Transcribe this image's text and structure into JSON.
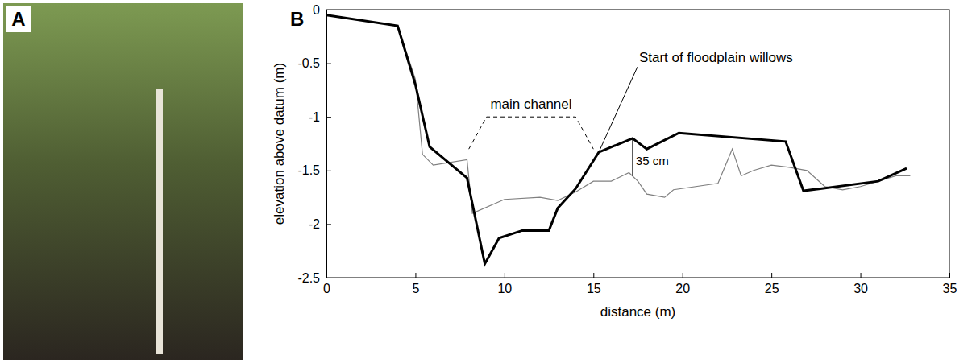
{
  "panel_a": {
    "label": "A"
  },
  "chart_data": {
    "type": "line",
    "panel_label": "B",
    "x_label": "distance (m)",
    "y_label": "elevation above datum (m)",
    "xlim": [
      0,
      35
    ],
    "xticks": [
      0,
      5,
      10,
      15,
      20,
      25,
      30,
      35
    ],
    "ylim": [
      -2.5,
      0
    ],
    "yticks": [
      -2.5,
      -2,
      -1.5,
      -1,
      -0.5,
      0
    ],
    "series": [
      {
        "color": "#000000",
        "x": [
          0,
          4,
          5,
          5.8,
          7.9,
          8.9,
          9.7,
          11,
          12.5,
          13,
          14,
          15.3,
          17.2,
          18,
          19.8,
          25.8,
          26.8,
          31,
          32.6
        ],
        "values": [
          -0.05,
          -0.15,
          -0.7,
          -1.28,
          -1.57,
          -2.37,
          -2.13,
          -2.06,
          -2.06,
          -1.85,
          -1.67,
          -1.33,
          -1.2,
          -1.3,
          -1.15,
          -1.23,
          -1.69,
          -1.6,
          -1.48
        ]
      },
      {
        "color": "#808080",
        "x": [
          0,
          4,
          5,
          5.4,
          6,
          7.9,
          8.2,
          10,
          12,
          13,
          14,
          15,
          16,
          17,
          17.5,
          18,
          19,
          19.5,
          22,
          22.8,
          23.3,
          24,
          25,
          26,
          27,
          28,
          29,
          30,
          31,
          32,
          32.8
        ],
        "values": [
          -0.05,
          -0.15,
          -0.65,
          -1.35,
          -1.45,
          -1.4,
          -1.9,
          -1.77,
          -1.75,
          -1.78,
          -1.7,
          -1.6,
          -1.6,
          -1.52,
          -1.6,
          -1.72,
          -1.75,
          -1.68,
          -1.62,
          -1.3,
          -1.55,
          -1.5,
          -1.45,
          -1.47,
          -1.5,
          -1.65,
          -1.68,
          -1.65,
          -1.6,
          -1.55,
          -1.55
        ]
      }
    ],
    "annotations": [
      {
        "text": "main channel",
        "x": [
          8,
          15
        ],
        "y": -1
      },
      {
        "text": "Start of floodplain willows",
        "x": 15.3,
        "y": -1.33
      },
      {
        "text": "35 cm",
        "x": 17.2,
        "y": [
          -1.55,
          -1.2
        ]
      }
    ]
  }
}
